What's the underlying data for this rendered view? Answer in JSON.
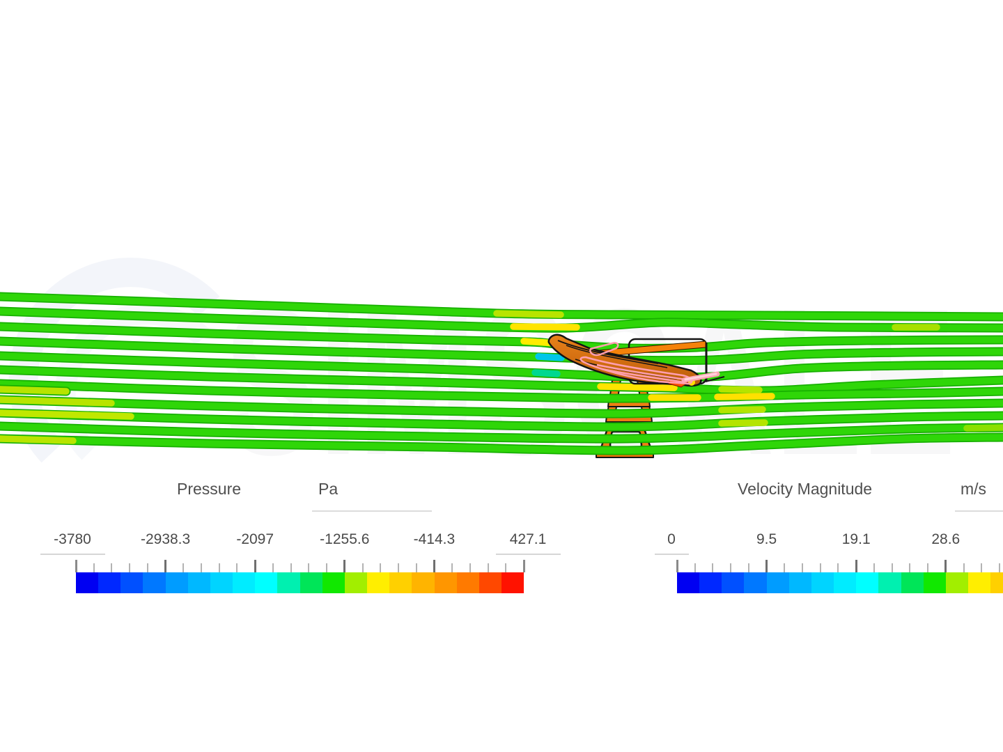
{
  "watermark": {
    "text": "SIMSCALE"
  },
  "scene": {
    "description": "Side view of CFD streamlines flowing left-to-right around an orange rear-wing model mounted on a trapezoidal support strut",
    "streamline_color": "#2fd608",
    "streamline_dark_edge": "#17b000",
    "object_color": "#e07818",
    "object_outline": "#141414",
    "highlight_outline_color": "#ff9fb0",
    "streamlines": [
      {
        "points": [
          [
            0,
            426
          ],
          [
            300,
            436
          ],
          [
            620,
            447
          ],
          [
            760,
            451
          ],
          [
            900,
            452
          ],
          [
            1100,
            453
          ],
          [
            1440,
            455
          ]
        ]
      },
      {
        "points": [
          [
            0,
            447
          ],
          [
            300,
            457
          ],
          [
            620,
            467
          ],
          [
            770,
            471
          ],
          [
            840,
            470
          ],
          [
            950,
            463
          ],
          [
            1060,
            466
          ],
          [
            1200,
            470
          ],
          [
            1440,
            471
          ]
        ]
      },
      {
        "points": [
          [
            0,
            469
          ],
          [
            300,
            479
          ],
          [
            620,
            488
          ],
          [
            760,
            491
          ],
          [
            800,
            494
          ],
          [
            900,
            500
          ],
          [
            1000,
            499
          ],
          [
            1100,
            492
          ],
          [
            1250,
            489
          ],
          [
            1440,
            488
          ]
        ]
      },
      {
        "points": [
          [
            0,
            490
          ],
          [
            300,
            500
          ],
          [
            620,
            509
          ],
          [
            780,
            513
          ],
          [
            900,
            517
          ],
          [
            1020,
            517
          ],
          [
            1150,
            509
          ],
          [
            1300,
            506
          ],
          [
            1440,
            505
          ]
        ]
      },
      {
        "points": [
          [
            0,
            511
          ],
          [
            300,
            521
          ],
          [
            620,
            530
          ],
          [
            780,
            536
          ],
          [
            900,
            541
          ],
          [
            1020,
            541
          ],
          [
            1150,
            529
          ],
          [
            1300,
            525
          ],
          [
            1440,
            524
          ]
        ]
      },
      {
        "points": [
          [
            0,
            531
          ],
          [
            300,
            541
          ],
          [
            620,
            549
          ],
          [
            800,
            554
          ],
          [
            950,
            557
          ],
          [
            1100,
            561
          ],
          [
            1250,
            553
          ],
          [
            1440,
            546
          ]
        ]
      },
      {
        "points": [
          [
            0,
            551
          ],
          [
            300,
            561
          ],
          [
            620,
            568
          ],
          [
            850,
            572
          ],
          [
            1000,
            571
          ],
          [
            1150,
            567
          ],
          [
            1300,
            565
          ],
          [
            1440,
            562
          ]
        ]
      },
      {
        "points": [
          [
            0,
            574
          ],
          [
            300,
            583
          ],
          [
            620,
            590
          ],
          [
            900,
            594
          ],
          [
            1100,
            586
          ],
          [
            1300,
            581
          ],
          [
            1440,
            579
          ]
        ]
      },
      {
        "points": [
          [
            0,
            593
          ],
          [
            300,
            602
          ],
          [
            620,
            609
          ],
          [
            900,
            613
          ],
          [
            1100,
            605
          ],
          [
            1300,
            599
          ],
          [
            1440,
            597
          ]
        ]
      },
      {
        "points": [
          [
            0,
            612
          ],
          [
            300,
            621
          ],
          [
            620,
            627
          ],
          [
            900,
            630
          ],
          [
            1100,
            623
          ],
          [
            1300,
            616
          ],
          [
            1440,
            614
          ]
        ]
      },
      {
        "points": [
          [
            0,
            630
          ],
          [
            300,
            637
          ],
          [
            620,
            642
          ],
          [
            900,
            647
          ],
          [
            1100,
            639
          ],
          [
            1300,
            630
          ],
          [
            1440,
            628
          ]
        ]
      },
      {
        "points": [
          [
            0,
            559
          ],
          [
            95,
            562
          ]
        ],
        "color": "#b8e400"
      }
    ],
    "colored_segments": [
      {
        "points": [
          [
            713,
            450
          ],
          [
            805,
            452
          ]
        ],
        "color": "#b8e400"
      },
      {
        "points": [
          [
            737,
            469
          ],
          [
            828,
            470
          ]
        ],
        "color": "#ffe400"
      },
      {
        "points": [
          [
            1285,
            470
          ],
          [
            1345,
            470
          ]
        ],
        "color": "#a8e000"
      },
      {
        "points": [
          [
            752,
            490
          ],
          [
            798,
            493
          ]
        ],
        "color": "#ffec00"
      },
      {
        "points": [
          [
            773,
            512
          ],
          [
            806,
            514
          ]
        ],
        "color": "#00c6e8"
      },
      {
        "points": [
          [
            768,
            535
          ],
          [
            800,
            537
          ]
        ],
        "color": "#00d890"
      },
      {
        "points": [
          [
            862,
            555
          ],
          [
            968,
            557
          ]
        ],
        "color": "#ffe400"
      },
      {
        "points": [
          [
            935,
            571
          ],
          [
            1002,
            571
          ]
        ],
        "color": "#ffe000"
      },
      {
        "points": [
          [
            1030,
            570
          ],
          [
            1108,
            569
          ]
        ],
        "color": "#ffe000"
      },
      {
        "points": [
          [
            1036,
            559
          ],
          [
            1090,
            560
          ]
        ],
        "color": "#b4e400"
      },
      {
        "points": [
          [
            1036,
            589
          ],
          [
            1095,
            588
          ]
        ],
        "color": "#b4e400"
      },
      {
        "points": [
          [
            1036,
            608
          ],
          [
            1098,
            607
          ]
        ],
        "color": "#b4e400"
      },
      {
        "points": [
          [
            0,
            574
          ],
          [
            160,
            579
          ]
        ],
        "color": "#b8e400"
      },
      {
        "points": [
          [
            0,
            593
          ],
          [
            188,
            598
          ]
        ],
        "color": "#c0e800"
      },
      {
        "points": [
          [
            0,
            630
          ],
          [
            105,
            633
          ]
        ],
        "color": "#b8e400"
      },
      {
        "points": [
          [
            1388,
            615
          ],
          [
            1440,
            614
          ]
        ],
        "color": "#8ce000"
      }
    ]
  },
  "legends": {
    "colorbar_colors": [
      "#0000f2",
      "#0028ff",
      "#0050ff",
      "#0078ff",
      "#009cff",
      "#00b8ff",
      "#00d4ff",
      "#00ecff",
      "#00ffff",
      "#00f0b0",
      "#00e558",
      "#11e800",
      "#a2ee00",
      "#ffee00",
      "#ffd000",
      "#ffb400",
      "#ff9600",
      "#ff7a00",
      "#ff4800",
      "#ff1200"
    ],
    "pressure": {
      "title": "Pressure",
      "unit": "Pa",
      "min": -3780,
      "max": 427.1,
      "tick_labels": [
        "-3780",
        "-2938.3",
        "-2097",
        "-1255.6",
        "-414.3",
        "427.1"
      ],
      "underlined_labels": [
        0,
        5
      ],
      "minor_divisions_per_major": 5
    },
    "velocity": {
      "title": "Velocity Magnitude",
      "unit": "m/s",
      "min": 0,
      "tick_labels": [
        "0",
        "9.5",
        "19.1",
        "28.6"
      ],
      "underlined_labels": [
        0
      ],
      "minor_divisions_per_major": 5,
      "note_bar_clipped_at_right_edge": true
    }
  }
}
